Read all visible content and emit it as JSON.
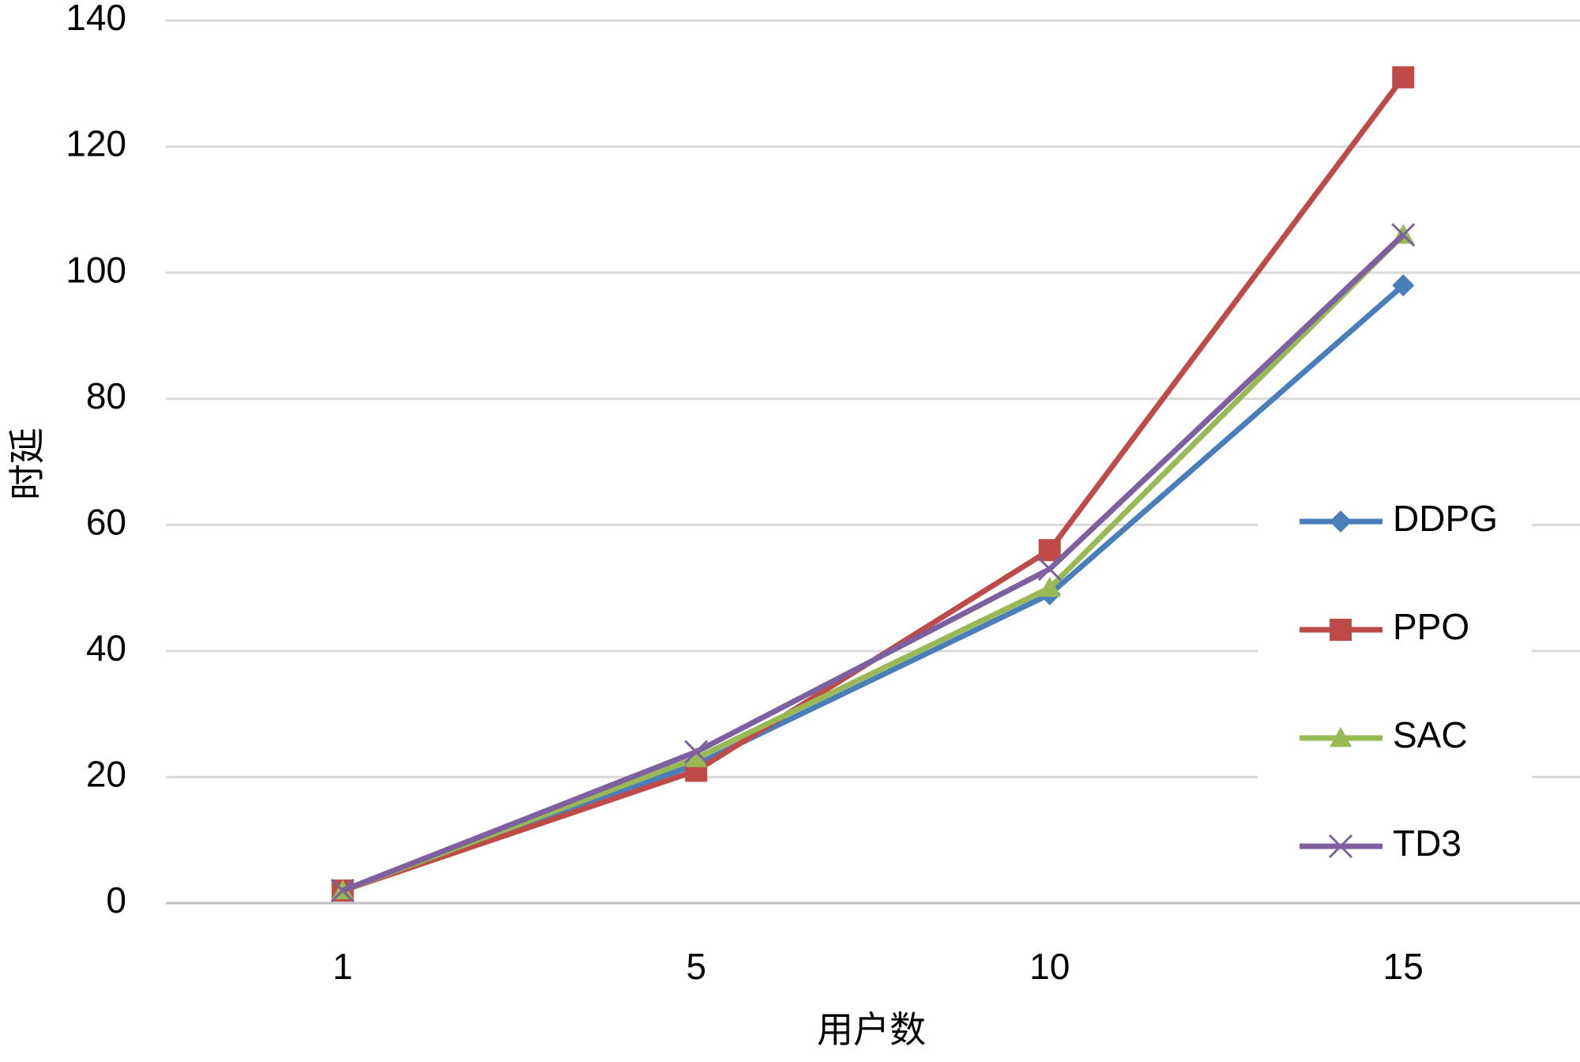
{
  "chart_data": {
    "type": "line",
    "x_label": "用户数",
    "y_label": "时延",
    "categories": [
      "1",
      "5",
      "10",
      "15"
    ],
    "series": [
      {
        "name": "DDPG",
        "color": "#4a7ebb",
        "marker": "diamond",
        "values": [
          2,
          22,
          49,
          98
        ]
      },
      {
        "name": "PPO",
        "color": "#be4b48",
        "marker": "square",
        "values": [
          2,
          21,
          56,
          131
        ]
      },
      {
        "name": "SAC",
        "color": "#98b954",
        "marker": "triangle",
        "values": [
          2,
          23,
          50,
          106
        ]
      },
      {
        "name": "TD3",
        "color": "#7d60a0",
        "marker": "x",
        "values": [
          2,
          24,
          53,
          106
        ]
      }
    ],
    "ylim": [
      0,
      140
    ],
    "yticks": [
      0,
      20,
      40,
      60,
      80,
      100,
      120,
      140
    ],
    "grid": true,
    "legend": "right"
  }
}
